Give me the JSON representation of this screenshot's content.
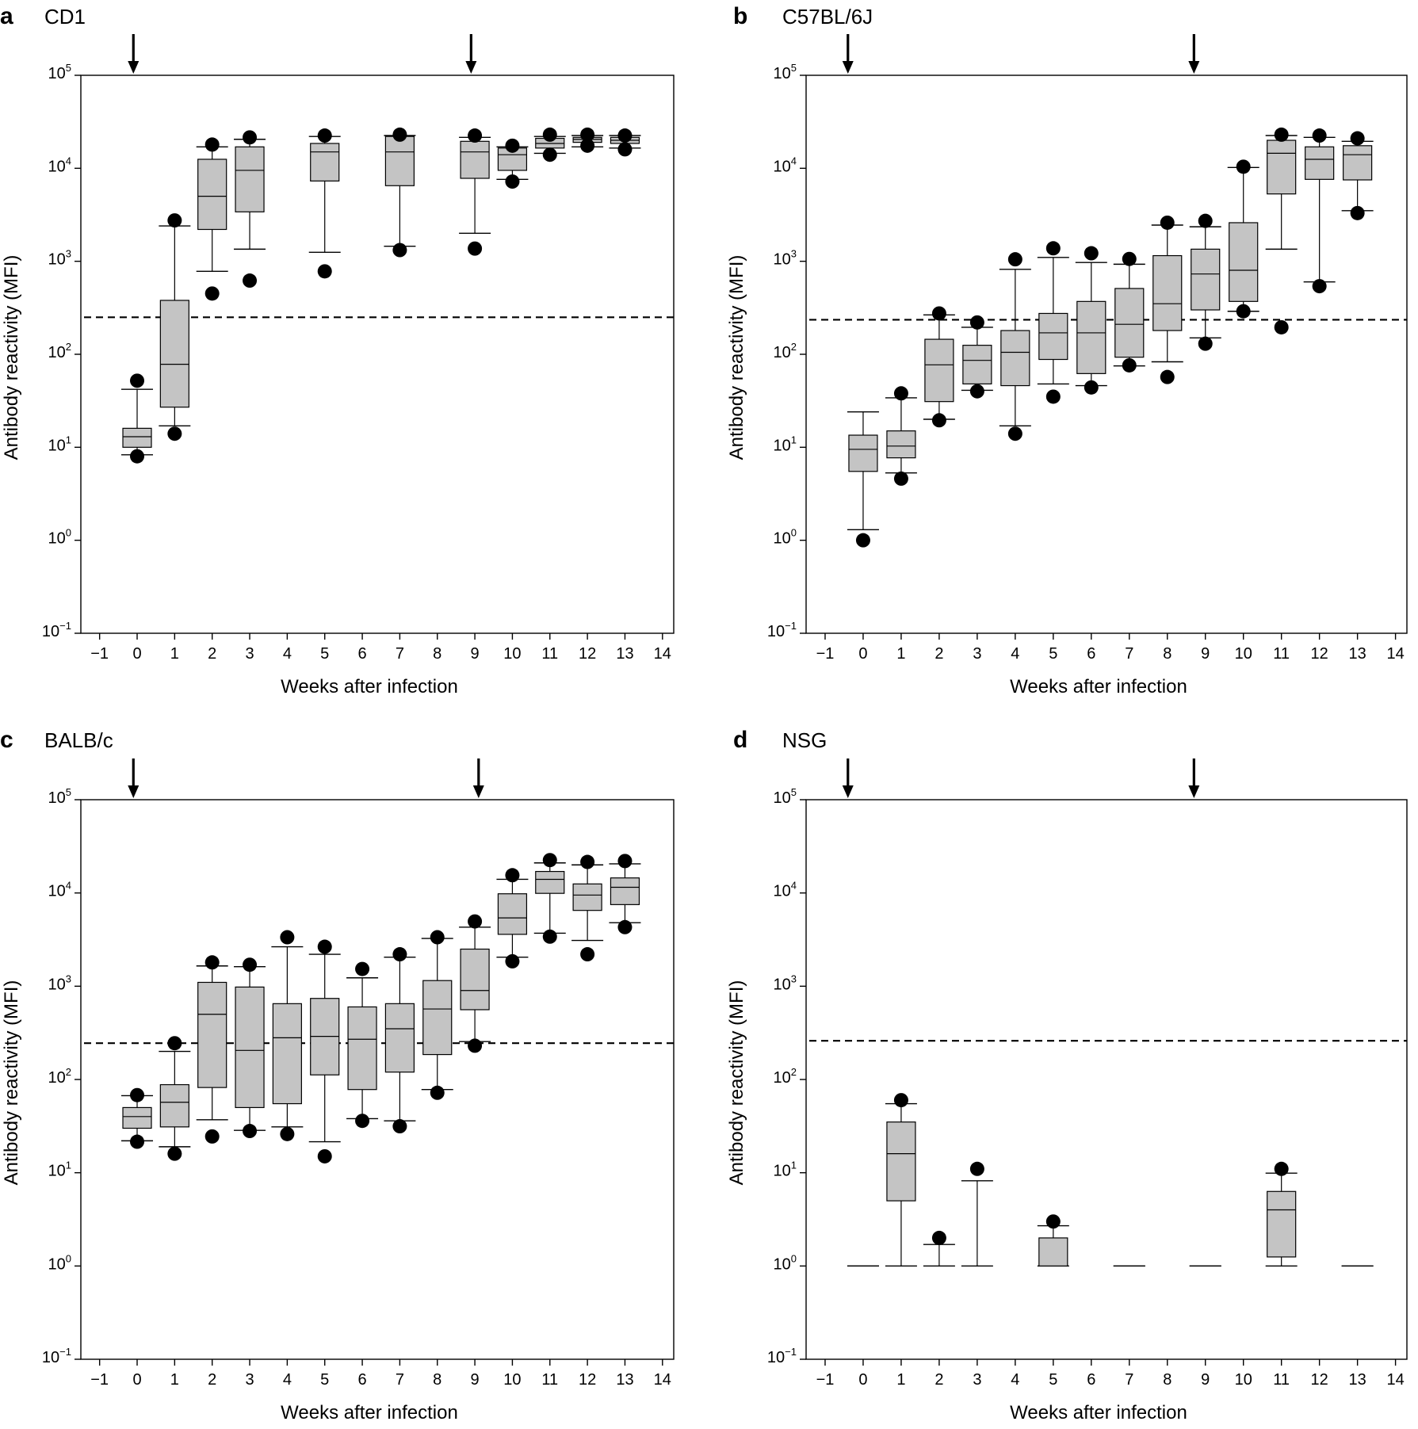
{
  "chart_data": [
    {
      "type": "box",
      "panel_label": "a",
      "title": "CD1",
      "xlabel": "Weeks after infection",
      "ylabel": "Antibody reactivity (MFI)",
      "yscale": "log",
      "ylim": [
        0.1,
        100000
      ],
      "xlim": [
        -1.5,
        14.3
      ],
      "x_ticks": [
        -1,
        0,
        1,
        2,
        3,
        4,
        5,
        6,
        7,
        8,
        9,
        10,
        11,
        12,
        13,
        14
      ],
      "x_tick_labels": [
        "−1",
        "0",
        "1",
        "2",
        "3",
        "4",
        "5",
        "6",
        "7",
        "8",
        "9",
        "10",
        "11",
        "12",
        "13",
        "14"
      ],
      "y_ticks": [
        {
          "base": "10",
          "exp": "−1",
          "value": 0.1
        },
        {
          "base": "10",
          "exp": "0",
          "value": 1
        },
        {
          "base": "10",
          "exp": "1",
          "value": 10
        },
        {
          "base": "10",
          "exp": "2",
          "value": 100
        },
        {
          "base": "10",
          "exp": "3",
          "value": 1000
        },
        {
          "base": "10",
          "exp": "4",
          "value": 10000
        },
        {
          "base": "10",
          "exp": "5",
          "value": 100000
        }
      ],
      "threshold": 250,
      "arrows_at_week": [
        -0.1,
        8.9
      ],
      "boxes": [
        {
          "week": 0,
          "whisker_low": 8.3,
          "q1": 10,
          "median": 13,
          "q3": 16,
          "whisker_high": 42,
          "outliers": [
            8,
            52
          ]
        },
        {
          "week": 1,
          "whisker_low": 17,
          "q1": 27,
          "median": 78,
          "q3": 380,
          "whisker_high": 2400,
          "outliers": [
            14,
            2750
          ]
        },
        {
          "week": 2,
          "whisker_low": 780,
          "q1": 2200,
          "median": 5000,
          "q3": 12500,
          "whisker_high": 17000,
          "outliers": [
            450,
            18000
          ]
        },
        {
          "week": 3,
          "whisker_low": 1350,
          "q1": 3400,
          "median": 9500,
          "q3": 17000,
          "whisker_high": 20500,
          "outliers": [
            620,
            21500
          ]
        },
        {
          "week": 5,
          "whisker_low": 1250,
          "q1": 7300,
          "median": 15000,
          "q3": 18500,
          "whisker_high": 22000,
          "outliers": [
            780,
            22500
          ]
        },
        {
          "week": 7,
          "whisker_low": 1450,
          "q1": 6500,
          "median": 15000,
          "q3": 22000,
          "whisker_high": 22500,
          "outliers": [
            1320,
            23000
          ]
        },
        {
          "week": 9,
          "whisker_low": 2000,
          "q1": 7800,
          "median": 15000,
          "q3": 19500,
          "whisker_high": 21500,
          "outliers": [
            1370,
            22500
          ]
        },
        {
          "week": 10,
          "whisker_low": 7600,
          "q1": 9500,
          "median": 14000,
          "q3": 16500,
          "whisker_high": 17000,
          "outliers": [
            7200,
            17500
          ]
        },
        {
          "week": 11,
          "whisker_low": 14500,
          "q1": 16500,
          "median": 18500,
          "q3": 21000,
          "whisker_high": 22000,
          "outliers": [
            14000,
            23000
          ]
        },
        {
          "week": 12,
          "whisker_low": 17000,
          "q1": 19000,
          "median": 20500,
          "q3": 21500,
          "whisker_high": 22500,
          "outliers": [
            17500,
            23000
          ]
        },
        {
          "week": 13,
          "whisker_low": 16500,
          "q1": 18500,
          "median": 20000,
          "q3": 21500,
          "whisker_high": 22500,
          "outliers": [
            16000,
            22500
          ]
        }
      ]
    },
    {
      "type": "box",
      "panel_label": "b",
      "title": "C57BL/6J",
      "xlabel": "Weeks after infection",
      "ylabel": "Antibody reactivity (MFI)",
      "yscale": "log",
      "ylim": [
        0.1,
        100000
      ],
      "xlim": [
        -1.5,
        14.3
      ],
      "x_ticks": [
        -1,
        0,
        1,
        2,
        3,
        4,
        5,
        6,
        7,
        8,
        9,
        10,
        11,
        12,
        13,
        14
      ],
      "x_tick_labels": [
        "−1",
        "0",
        "1",
        "2",
        "3",
        "4",
        "5",
        "6",
        "7",
        "8",
        "9",
        "10",
        "11",
        "12",
        "13",
        "14"
      ],
      "y_ticks": [
        {
          "base": "10",
          "exp": "−1",
          "value": 0.1
        },
        {
          "base": "10",
          "exp": "0",
          "value": 1
        },
        {
          "base": "10",
          "exp": "1",
          "value": 10
        },
        {
          "base": "10",
          "exp": "2",
          "value": 100
        },
        {
          "base": "10",
          "exp": "3",
          "value": 1000
        },
        {
          "base": "10",
          "exp": "4",
          "value": 10000
        },
        {
          "base": "10",
          "exp": "5",
          "value": 100000
        }
      ],
      "threshold": 235,
      "arrows_at_week": [
        -0.4,
        8.7
      ],
      "boxes": [
        {
          "week": 0,
          "whisker_low": 1.3,
          "q1": 5.5,
          "median": 9.5,
          "q3": 13.5,
          "whisker_high": 24,
          "outliers": [
            1
          ]
        },
        {
          "week": 1,
          "whisker_low": 5.3,
          "q1": 7.7,
          "median": 10.3,
          "q3": 15,
          "whisker_high": 34,
          "outliers": [
            4.6,
            38
          ]
        },
        {
          "week": 2,
          "whisker_low": 20,
          "q1": 31,
          "median": 77,
          "q3": 145,
          "whisker_high": 265,
          "outliers": [
            19.5,
            275
          ]
        },
        {
          "week": 3,
          "whisker_low": 41,
          "q1": 48,
          "median": 86,
          "q3": 125,
          "whisker_high": 195,
          "outliers": [
            40,
            220
          ]
        },
        {
          "week": 4,
          "whisker_low": 17,
          "q1": 46,
          "median": 105,
          "q3": 180,
          "whisker_high": 820,
          "outliers": [
            14,
            1050
          ]
        },
        {
          "week": 5,
          "whisker_low": 48,
          "q1": 88,
          "median": 170,
          "q3": 275,
          "whisker_high": 1100,
          "outliers": [
            35,
            1380
          ]
        },
        {
          "week": 6,
          "whisker_low": 46,
          "q1": 62,
          "median": 170,
          "q3": 370,
          "whisker_high": 970,
          "outliers": [
            44,
            1220
          ]
        },
        {
          "week": 7,
          "whisker_low": 75,
          "q1": 93,
          "median": 210,
          "q3": 510,
          "whisker_high": 930,
          "outliers": [
            76,
            1060
          ]
        },
        {
          "week": 8,
          "whisker_low": 83,
          "q1": 180,
          "median": 350,
          "q3": 1150,
          "whisker_high": 2450,
          "outliers": [
            57,
            2600
          ]
        },
        {
          "week": 9,
          "whisker_low": 150,
          "q1": 300,
          "median": 730,
          "q3": 1350,
          "whisker_high": 2350,
          "outliers": [
            130,
            2720
          ]
        },
        {
          "week": 10,
          "whisker_low": 290,
          "q1": 370,
          "median": 800,
          "q3": 2600,
          "whisker_high": 10200,
          "outliers": [
            290,
            10400
          ]
        },
        {
          "week": 11,
          "whisker_low": 1350,
          "q1": 5300,
          "median": 14500,
          "q3": 20000,
          "whisker_high": 22500,
          "outliers": [
            195,
            23000
          ]
        },
        {
          "week": 12,
          "whisker_low": 600,
          "q1": 7600,
          "median": 12500,
          "q3": 17000,
          "whisker_high": 21500,
          "outliers": [
            540,
            22500
          ]
        },
        {
          "week": 13,
          "whisker_low": 3500,
          "q1": 7500,
          "median": 14000,
          "q3": 17500,
          "whisker_high": 19500,
          "outliers": [
            3300,
            21000
          ]
        }
      ]
    },
    {
      "type": "box",
      "panel_label": "c",
      "title": "BALB/c",
      "xlabel": "Weeks after infection",
      "ylabel": "Antibody reactivity (MFI)",
      "yscale": "log",
      "ylim": [
        0.1,
        100000
      ],
      "xlim": [
        -1.5,
        14.3
      ],
      "x_ticks": [
        -1,
        0,
        1,
        2,
        3,
        4,
        5,
        6,
        7,
        8,
        9,
        10,
        11,
        12,
        13,
        14
      ],
      "x_tick_labels": [
        "−1",
        "0",
        "1",
        "2",
        "3",
        "4",
        "5",
        "6",
        "7",
        "8",
        "9",
        "10",
        "11",
        "12",
        "13",
        "14"
      ],
      "y_ticks": [
        {
          "base": "10",
          "exp": "−1",
          "value": 0.1
        },
        {
          "base": "10",
          "exp": "0",
          "value": 1
        },
        {
          "base": "10",
          "exp": "1",
          "value": 10
        },
        {
          "base": "10",
          "exp": "2",
          "value": 100
        },
        {
          "base": "10",
          "exp": "3",
          "value": 1000
        },
        {
          "base": "10",
          "exp": "4",
          "value": 10000
        },
        {
          "base": "10",
          "exp": "5",
          "value": 100000
        }
      ],
      "threshold": 245,
      "arrows_at_week": [
        -0.1,
        9.1
      ],
      "boxes": [
        {
          "week": 0,
          "whisker_low": 22,
          "q1": 30,
          "median": 40,
          "q3": 50,
          "whisker_high": 67,
          "outliers": [
            21.5,
            68
          ]
        },
        {
          "week": 1,
          "whisker_low": 19,
          "q1": 31,
          "median": 57,
          "q3": 88,
          "whisker_high": 200,
          "outliers": [
            16,
            245
          ]
        },
        {
          "week": 2,
          "whisker_low": 37,
          "q1": 82,
          "median": 500,
          "q3": 1100,
          "whisker_high": 1650,
          "outliers": [
            24.5,
            1800
          ]
        },
        {
          "week": 3,
          "whisker_low": 28.5,
          "q1": 50,
          "median": 205,
          "q3": 980,
          "whisker_high": 1620,
          "outliers": [
            28,
            1700
          ]
        },
        {
          "week": 4,
          "whisker_low": 31,
          "q1": 55,
          "median": 280,
          "q3": 650,
          "whisker_high": 2650,
          "outliers": [
            26,
            3350
          ]
        },
        {
          "week": 5,
          "whisker_low": 21.5,
          "q1": 112,
          "median": 290,
          "q3": 740,
          "whisker_high": 2200,
          "outliers": [
            15,
            2650
          ]
        },
        {
          "week": 6,
          "whisker_low": 38,
          "q1": 78,
          "median": 270,
          "q3": 600,
          "whisker_high": 1230,
          "outliers": [
            36,
            1530
          ]
        },
        {
          "week": 7,
          "whisker_low": 36,
          "q1": 120,
          "median": 350,
          "q3": 650,
          "whisker_high": 2050,
          "outliers": [
            31.5,
            2200
          ]
        },
        {
          "week": 8,
          "whisker_low": 78,
          "q1": 185,
          "median": 570,
          "q3": 1150,
          "whisker_high": 3250,
          "outliers": [
            72,
            3350
          ]
        },
        {
          "week": 9,
          "whisker_low": 255,
          "q1": 560,
          "median": 900,
          "q3": 2500,
          "whisker_high": 4300,
          "outliers": [
            230,
            4950
          ]
        },
        {
          "week": 10,
          "whisker_low": 2050,
          "q1": 3600,
          "median": 5400,
          "q3": 9800,
          "whisker_high": 14000,
          "outliers": [
            1850,
            15500
          ]
        },
        {
          "week": 11,
          "whisker_low": 3700,
          "q1": 9900,
          "median": 14000,
          "q3": 17000,
          "whisker_high": 21000,
          "outliers": [
            3400,
            22500
          ]
        },
        {
          "week": 12,
          "whisker_low": 3100,
          "q1": 6500,
          "median": 9500,
          "q3": 12500,
          "whisker_high": 20000,
          "outliers": [
            2200,
            21500
          ]
        },
        {
          "week": 13,
          "whisker_low": 4800,
          "q1": 7500,
          "median": 11500,
          "q3": 14500,
          "whisker_high": 20500,
          "outliers": [
            4300,
            22000
          ]
        }
      ]
    },
    {
      "type": "box",
      "panel_label": "d",
      "title": "NSG",
      "xlabel": "Weeks after infection",
      "ylabel": "Antibody reactivity (MFI)",
      "yscale": "log",
      "ylim": [
        0.1,
        100000
      ],
      "xlim": [
        -1.5,
        14.3
      ],
      "x_ticks": [
        -1,
        0,
        1,
        2,
        3,
        4,
        5,
        6,
        7,
        8,
        9,
        10,
        11,
        12,
        13,
        14
      ],
      "x_tick_labels": [
        "−1",
        "0",
        "1",
        "2",
        "3",
        "4",
        "5",
        "6",
        "7",
        "8",
        "9",
        "10",
        "11",
        "12",
        "13",
        "14"
      ],
      "y_ticks": [
        {
          "base": "10",
          "exp": "−1",
          "value": 0.1
        },
        {
          "base": "10",
          "exp": "0",
          "value": 1
        },
        {
          "base": "10",
          "exp": "1",
          "value": 10
        },
        {
          "base": "10",
          "exp": "2",
          "value": 100
        },
        {
          "base": "10",
          "exp": "3",
          "value": 1000
        },
        {
          "base": "10",
          "exp": "4",
          "value": 10000
        },
        {
          "base": "10",
          "exp": "5",
          "value": 100000
        }
      ],
      "threshold": 260,
      "arrows_at_week": [
        -0.4,
        8.7
      ],
      "boxes": [
        {
          "week": 0,
          "whisker_low": 1,
          "q1": 1,
          "median": 1,
          "q3": 1,
          "whisker_high": 1,
          "outliers": []
        },
        {
          "week": 1,
          "whisker_low": 1,
          "q1": 5,
          "median": 16,
          "q3": 35,
          "whisker_high": 55,
          "outliers": [
            60
          ]
        },
        {
          "week": 2,
          "whisker_low": 1,
          "q1": 1,
          "median": 1,
          "q3": 1,
          "whisker_high": 1.7,
          "outliers": [
            2
          ]
        },
        {
          "week": 3,
          "whisker_low": 1,
          "q1": 1,
          "median": 1,
          "q3": 1,
          "whisker_high": 8.2,
          "outliers": [
            11
          ]
        },
        {
          "week": 5,
          "whisker_low": 1,
          "q1": 1,
          "median": 1,
          "q3": 2,
          "whisker_high": 2.7,
          "outliers": [
            3
          ]
        },
        {
          "week": 7,
          "whisker_low": 1,
          "q1": 1,
          "median": 1,
          "q3": 1,
          "whisker_high": 1,
          "outliers": []
        },
        {
          "week": 9,
          "whisker_low": 1,
          "q1": 1,
          "median": 1,
          "q3": 1,
          "whisker_high": 1,
          "outliers": []
        },
        {
          "week": 11,
          "whisker_low": 1,
          "q1": 1.25,
          "median": 4,
          "q3": 6.3,
          "whisker_high": 9.9,
          "outliers": [
            11
          ]
        },
        {
          "week": 13,
          "whisker_low": 1,
          "q1": 1,
          "median": 1,
          "q3": 1,
          "whisker_high": 1,
          "outliers": []
        }
      ]
    }
  ]
}
